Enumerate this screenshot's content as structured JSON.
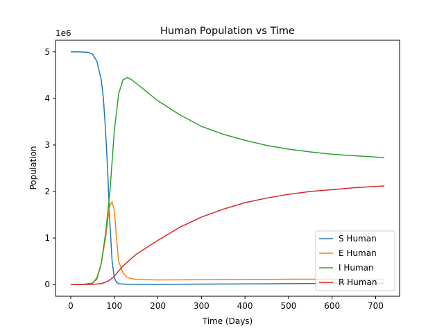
{
  "chart_data": {
    "type": "line",
    "title": "Human Population vs Time",
    "xlabel": "Time (Days)",
    "ylabel": "Population",
    "y_scale_label": "1e6",
    "xlim": [
      -35,
      755
    ],
    "ylim": [
      -250000,
      5250000
    ],
    "xticks": [
      0,
      100,
      200,
      300,
      400,
      500,
      600,
      700
    ],
    "xtick_labels": [
      "0",
      "100",
      "200",
      "300",
      "400",
      "500",
      "600",
      "700"
    ],
    "yticks": [
      0,
      1000000,
      2000000,
      3000000,
      4000000,
      5000000
    ],
    "ytick_labels": [
      "0",
      "1",
      "2",
      "3",
      "4",
      "5"
    ],
    "grid": false,
    "legend_position": "lower-right",
    "series": [
      {
        "name": "S Human",
        "color": "#1f77b4",
        "x": [
          0,
          20,
          40,
          50,
          60,
          70,
          75,
          80,
          85,
          90,
          95,
          100,
          105,
          110,
          120,
          150,
          200,
          300,
          400,
          500,
          600,
          720
        ],
        "y": [
          5000000,
          5000000,
          4990000,
          4950000,
          4800000,
          4400000,
          4000000,
          3300000,
          2400000,
          1300000,
          500000,
          150000,
          50000,
          20000,
          10000,
          5000,
          5000,
          10000,
          15000,
          20000,
          25000,
          30000
        ]
      },
      {
        "name": "E Human",
        "color": "#ff7f0e",
        "x": [
          0,
          30,
          50,
          60,
          70,
          80,
          85,
          90,
          95,
          100,
          105,
          110,
          120,
          130,
          150,
          200,
          300,
          400,
          500,
          600,
          720
        ],
        "y": [
          0,
          5000,
          30000,
          150000,
          450000,
          1000000,
          1400000,
          1700000,
          1780000,
          1600000,
          1000000,
          500000,
          250000,
          150000,
          110000,
          100000,
          105000,
          110000,
          115000,
          115000,
          115000
        ]
      },
      {
        "name": "I Human",
        "color": "#2ca02c",
        "x": [
          0,
          30,
          50,
          60,
          70,
          80,
          90,
          100,
          110,
          120,
          130,
          140,
          160,
          200,
          250,
          300,
          350,
          400,
          450,
          500,
          550,
          600,
          650,
          720
        ],
        "y": [
          0,
          5000,
          30000,
          120000,
          450000,
          1100000,
          2000000,
          3300000,
          4100000,
          4400000,
          4450000,
          4400000,
          4250000,
          3950000,
          3650000,
          3400000,
          3230000,
          3100000,
          2990000,
          2910000,
          2850000,
          2800000,
          2770000,
          2730000
        ]
      },
      {
        "name": "R Human",
        "color": "#d62728",
        "x": [
          0,
          50,
          70,
          80,
          90,
          100,
          120,
          150,
          200,
          250,
          300,
          350,
          400,
          450,
          500,
          550,
          600,
          650,
          720
        ],
        "y": [
          0,
          5000,
          20000,
          50000,
          100000,
          180000,
          400000,
          650000,
          950000,
          1230000,
          1450000,
          1620000,
          1760000,
          1860000,
          1940000,
          2000000,
          2040000,
          2080000,
          2120000
        ]
      }
    ]
  }
}
